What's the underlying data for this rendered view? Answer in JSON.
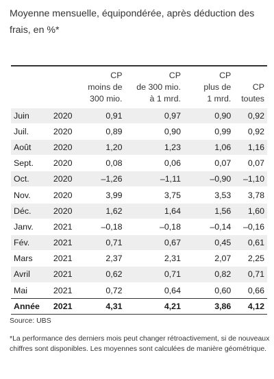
{
  "title": "Moyenne mensuelle, équipondérée, après déduction des frais, en %*",
  "table": {
    "headers": [
      "CP\nmoins de\n300 mio.",
      "CP\nde 300 mio.\nà 1 mrd.",
      "CP\nplus de\n1 mrd.",
      "CP\ntoutes"
    ],
    "rows": [
      {
        "month": "Juin",
        "year": "2020",
        "v": [
          "0,91",
          "0,97",
          "0,90",
          "0,92"
        ]
      },
      {
        "month": "Juil.",
        "year": "2020",
        "v": [
          "0,89",
          "0,90",
          "0,99",
          "0,92"
        ]
      },
      {
        "month": "Août",
        "year": "2020",
        "v": [
          "1,20",
          "1,23",
          "1,06",
          "1,16"
        ]
      },
      {
        "month": "Sept.",
        "year": "2020",
        "v": [
          "0,08",
          "0,06",
          "0,07",
          "0,07"
        ]
      },
      {
        "month": "Oct.",
        "year": "2020",
        "v": [
          "–1,26",
          "–1,11",
          "–0,90",
          "–1,10"
        ]
      },
      {
        "month": "Nov.",
        "year": "2020",
        "v": [
          "3,99",
          "3,75",
          "3,53",
          "3,78"
        ]
      },
      {
        "month": "Déc.",
        "year": "2020",
        "v": [
          "1,62",
          "1,64",
          "1,56",
          "1,60"
        ]
      },
      {
        "month": "Janv.",
        "year": "2021",
        "v": [
          "–0,18",
          "–0,18",
          "–0,14",
          "–0,16"
        ]
      },
      {
        "month": "Fév.",
        "year": "2021",
        "v": [
          "0,71",
          "0,67",
          "0,45",
          "0,61"
        ]
      },
      {
        "month": "Mars",
        "year": "2021",
        "v": [
          "2,37",
          "2,31",
          "2,07",
          "2,25"
        ]
      },
      {
        "month": "Avril",
        "year": "2021",
        "v": [
          "0,62",
          "0,71",
          "0,82",
          "0,71"
        ]
      },
      {
        "month": "Mai",
        "year": "2021",
        "v": [
          "0,72",
          "0,64",
          "0,60",
          "0,66"
        ]
      }
    ],
    "total": {
      "month": "Année",
      "year": "2021",
      "v": [
        "4,31",
        "4,21",
        "3,86",
        "4,12"
      ]
    }
  },
  "source": "Source: UBS",
  "note": "*La performance des derniers mois peut changer rétroactivement, si de nouveaux chiffres sont disponibles. Les moyennes sont calculées de manière géométrique."
}
